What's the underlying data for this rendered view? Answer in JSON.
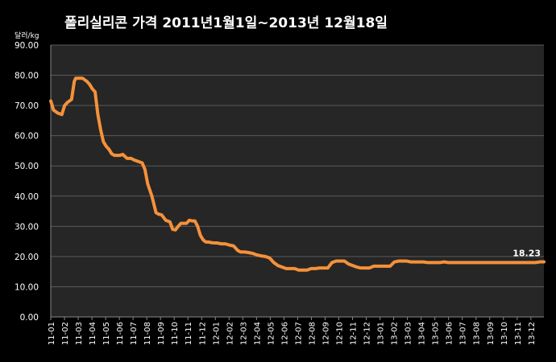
{
  "chart_data": {
    "type": "line",
    "title": "폴리실리콘 가격   2011년1월1일~2013년 12월18일",
    "ylabel": "달러/kg",
    "xlabel": "",
    "ylim": [
      0,
      90
    ],
    "yticks": [
      "0.00",
      "10.00",
      "20.00",
      "30.00",
      "40.00",
      "50.00",
      "60.00",
      "70.00",
      "80.00",
      "90.00"
    ],
    "xticks": [
      "11-01",
      "11-02",
      "11-03",
      "11-04",
      "11-05",
      "11-06",
      "11-07",
      "11-08",
      "11-09",
      "11-10",
      "11-11",
      "11-12",
      "12-01",
      "12-02",
      "12-03",
      "12-04",
      "12-05",
      "12-06",
      "12-07",
      "12-08",
      "12-09",
      "12-10",
      "12-11",
      "12-12",
      "13-01",
      "13-02",
      "13-03",
      "13-04",
      "13-05",
      "13-06",
      "13-07",
      "13-08",
      "13-09",
      "13-10",
      "13-11",
      "13-12"
    ],
    "grid": true,
    "legend": "none",
    "line_color": "#F5913A",
    "end_label": "18.23",
    "series": [
      {
        "x": [
          0,
          0.2,
          0.5,
          0.8,
          1.0,
          1.2,
          1.5,
          1.7,
          1.8,
          2.0,
          2.3,
          2.6,
          2.8,
          3.0,
          3.2,
          3.4,
          3.6,
          3.8,
          4.0,
          4.2,
          4.4,
          4.6,
          4.8,
          5.0,
          5.2,
          5.5,
          5.8,
          6.0,
          6.3,
          6.6,
          6.8,
          7.0,
          7.3,
          7.6,
          7.8,
          8.0,
          8.3,
          8.6,
          8.8,
          9.0,
          9.2,
          9.4,
          9.6,
          9.8,
          10.0,
          10.2,
          10.4,
          10.6,
          10.8,
          11.0,
          11.2,
          11.4,
          11.6,
          11.8,
          12.0,
          12.3,
          12.6,
          12.9,
          13.2,
          13.5,
          13.7,
          14.0,
          14.3,
          14.6,
          14.9,
          15.2,
          15.5,
          15.8,
          16.1,
          16.4,
          16.7,
          17.0,
          17.3,
          17.6,
          17.9,
          18.2,
          18.5,
          18.8,
          19.1,
          19.4,
          19.7,
          20.0,
          20.3,
          20.6,
          20.9,
          21.2,
          21.5,
          21.8,
          22.1,
          22.4,
          22.7,
          23.0,
          23.3,
          23.6,
          23.9,
          24.2,
          24.5,
          24.8,
          25.1,
          25.4,
          25.7,
          26.0,
          26.3,
          26.6,
          26.9,
          27.2,
          27.5,
          27.8,
          28.1,
          28.4,
          28.7,
          29.0,
          29.3,
          29.6,
          29.9,
          30.2,
          30.5,
          30.8,
          31.1,
          31.4,
          31.7,
          32.0,
          32.3,
          32.6,
          32.9,
          33.2,
          33.5,
          33.8,
          34.1,
          34.4,
          34.7,
          35.0,
          35.3,
          35.6
        ],
        "y": [
          71.5,
          68.5,
          67.5,
          67.0,
          70.0,
          71.0,
          72.0,
          78.0,
          79.0,
          79.0,
          79.0,
          78.0,
          77.0,
          75.5,
          74.5,
          67.0,
          62.0,
          58.0,
          56.5,
          55.5,
          54.0,
          53.5,
          53.5,
          53.5,
          53.8,
          52.5,
          52.5,
          52.0,
          51.5,
          51.0,
          48.8,
          44.0,
          40.0,
          34.5,
          34.0,
          33.8,
          32.0,
          31.5,
          29.0,
          28.8,
          30.0,
          31.0,
          31.0,
          31.0,
          32.0,
          31.8,
          31.8,
          30.0,
          27.0,
          25.5,
          24.8,
          24.8,
          24.6,
          24.5,
          24.5,
          24.2,
          24.2,
          23.8,
          23.5,
          22.0,
          21.5,
          21.5,
          21.3,
          21.0,
          20.5,
          20.2,
          20.0,
          19.5,
          18.0,
          17.0,
          16.5,
          16.0,
          16.0,
          16.0,
          15.5,
          15.5,
          15.5,
          16.0,
          16.0,
          16.2,
          16.2,
          16.2,
          18.0,
          18.5,
          18.5,
          18.5,
          17.5,
          17.0,
          16.5,
          16.2,
          16.2,
          16.2,
          16.8,
          16.8,
          16.8,
          16.8,
          16.8,
          18.2,
          18.5,
          18.5,
          18.5,
          18.2,
          18.2,
          18.2,
          18.2,
          18.0,
          18.0,
          18.0,
          18.0,
          18.23,
          18.0,
          18.0,
          18.0,
          18.0,
          18.0,
          18.0,
          18.0,
          18.0,
          18.0,
          18.0,
          18.0,
          18.0,
          18.0,
          18.0,
          18.0,
          18.0,
          18.0,
          18.0,
          18.0,
          18.0,
          18.0,
          18.0,
          18.23,
          18.23
        ],
        "x_domain": [
          0,
          35.6
        ]
      }
    ]
  }
}
